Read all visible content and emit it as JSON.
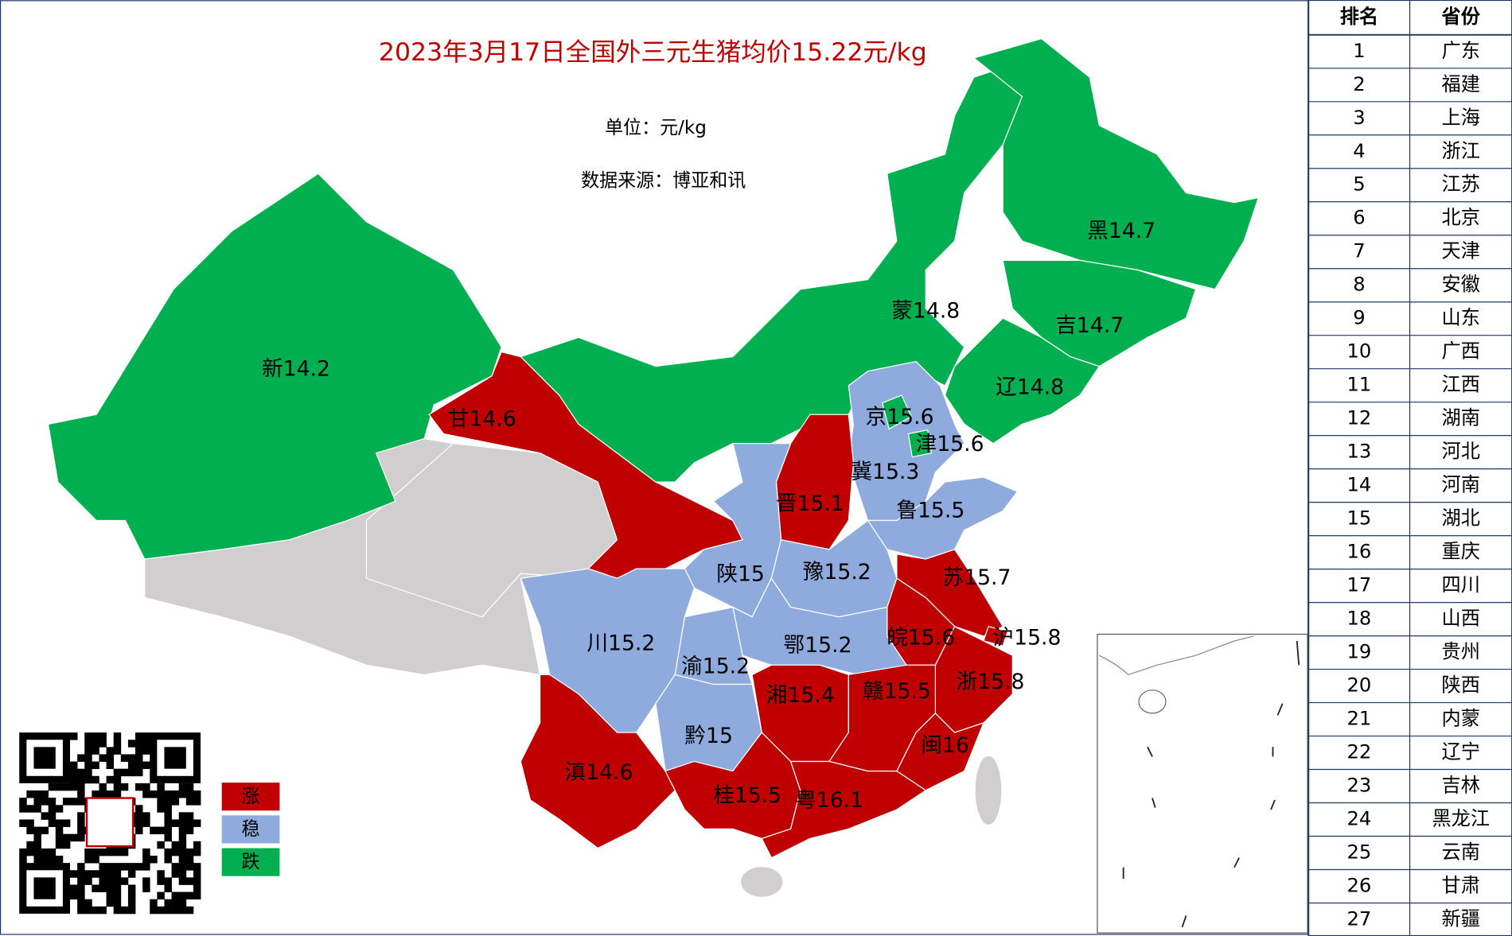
{
  "title": "2023年3月17日全国外三元生猪均价15.22元/kg",
  "unit": "单位：元/kg",
  "source": "数据来源：博亚和讯",
  "legend": [
    {
      "label": "涨",
      "color": "#c00000"
    },
    {
      "label": "稳",
      "color": "#8faadc"
    },
    {
      "label": "跌",
      "color": "#00b050"
    }
  ],
  "regions": [
    {
      "name": "新",
      "value": 14.2,
      "status": "跌"
    },
    {
      "name": "甘",
      "value": 14.6,
      "status": "涨"
    },
    {
      "name": "蒙",
      "value": 14.8,
      "status": "跌"
    },
    {
      "name": "黑",
      "value": 14.7,
      "status": "跌"
    },
    {
      "name": "吉",
      "value": 14.7,
      "status": "跌"
    },
    {
      "name": "辽",
      "value": 14.8,
      "status": "跌"
    },
    {
      "name": "冀",
      "value": 15.3,
      "status": "稳"
    },
    {
      "name": "京",
      "value": 15.6,
      "status": "跌"
    },
    {
      "name": "津",
      "value": 15.6,
      "status": "跌"
    },
    {
      "name": "晋",
      "value": 15.1,
      "status": "涨"
    },
    {
      "name": "陕",
      "value": 15,
      "status": "稳"
    },
    {
      "name": "鲁",
      "value": 15.5,
      "status": "稳"
    },
    {
      "name": "豫",
      "value": 15.2,
      "status": "稳"
    },
    {
      "name": "苏",
      "value": 15.7,
      "status": "涨"
    },
    {
      "name": "皖",
      "value": 15.6,
      "status": "涨"
    },
    {
      "name": "沪",
      "value": 15.8,
      "status": "涨"
    },
    {
      "name": "浙",
      "value": 15.8,
      "status": "涨"
    },
    {
      "name": "鄂",
      "value": 15.2,
      "status": "稳"
    },
    {
      "name": "渝",
      "value": 15.2,
      "status": "稳"
    },
    {
      "name": "川",
      "value": 15.2,
      "status": "稳"
    },
    {
      "name": "黔",
      "value": 15,
      "status": "稳"
    },
    {
      "name": "湘",
      "value": 15.4,
      "status": "涨"
    },
    {
      "name": "赣",
      "value": 15.5,
      "status": "涨"
    },
    {
      "name": "闽",
      "value": 16,
      "status": "涨"
    },
    {
      "name": "滇",
      "value": 14.6,
      "status": "涨"
    },
    {
      "name": "桂",
      "value": 15.5,
      "status": "涨"
    },
    {
      "name": "粤",
      "value": 16.1,
      "status": "涨"
    }
  ],
  "table": {
    "header": [
      "排名",
      "省份"
    ],
    "rows": [
      [
        1,
        "广东"
      ],
      [
        2,
        "福建"
      ],
      [
        3,
        "上海"
      ],
      [
        4,
        "浙江"
      ],
      [
        5,
        "江苏"
      ],
      [
        6,
        "北京"
      ],
      [
        7,
        "天津"
      ],
      [
        8,
        "安徽"
      ],
      [
        9,
        "山东"
      ],
      [
        10,
        "广西"
      ],
      [
        11,
        "江西"
      ],
      [
        12,
        "湖南"
      ],
      [
        13,
        "河北"
      ],
      [
        14,
        "河南"
      ],
      [
        15,
        "湖北"
      ],
      [
        16,
        "重庆"
      ],
      [
        17,
        "四川"
      ],
      [
        18,
        "山西"
      ],
      [
        19,
        "贵州"
      ],
      [
        20,
        "陕西"
      ],
      [
        21,
        "内蒙"
      ],
      [
        22,
        "辽宁"
      ],
      [
        23,
        "吉林"
      ],
      [
        24,
        "黑龙江"
      ],
      [
        25,
        "云南"
      ],
      [
        26,
        "甘肃"
      ],
      [
        27,
        "新疆"
      ]
    ]
  }
}
